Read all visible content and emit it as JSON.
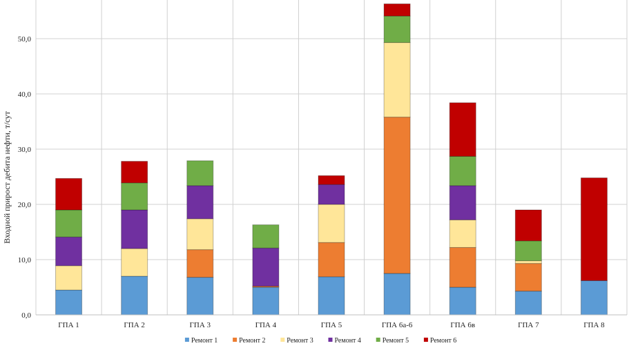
{
  "chart_data": {
    "type": "stacked-bar",
    "ylabel": "Входной прирост дебита нефти, т/сут",
    "ylim": [
      0,
      57
    ],
    "yticks": [
      0,
      10,
      20,
      30,
      40,
      50
    ],
    "ytick_labels": [
      "0,0",
      "10,0",
      "20,0",
      "30,0",
      "40,0",
      "50,0"
    ],
    "grid": "on",
    "legend_position": "bottom",
    "categories": [
      "ГПА 1",
      "ГПА 2",
      "ГПА 3",
      "ГПА 4",
      "ГПА 5",
      "ГПА 6а-6",
      "ГПА 6в",
      "ГПА 7",
      "ГПА 8"
    ],
    "series": [
      {
        "name": "Ремонт 1",
        "color": "#5b9bd5",
        "values": [
          4.5,
          7.0,
          6.8,
          5.0,
          6.9,
          7.5,
          5.0,
          4.3,
          6.2
        ]
      },
      {
        "name": "Ремонт 2",
        "color": "#ed7d31",
        "values": [
          0,
          0,
          5.0,
          0.2,
          6.2,
          28.3,
          7.2,
          5.0,
          0
        ]
      },
      {
        "name": "Ремонт 3",
        "color": "#ffe699",
        "values": [
          4.4,
          5.0,
          5.6,
          0,
          6.9,
          13.5,
          5.0,
          0.5,
          0
        ]
      },
      {
        "name": "Ремонт 4",
        "color": "#7030a0",
        "values": [
          5.2,
          7.0,
          6.0,
          6.9,
          3.6,
          0,
          6.2,
          0,
          0
        ]
      },
      {
        "name": "Ремонт 5",
        "color": "#70ad47",
        "values": [
          4.9,
          4.9,
          4.5,
          4.2,
          0,
          4.8,
          5.3,
          3.6,
          0
        ]
      },
      {
        "name": "Ремонт 6",
        "color": "#c00000",
        "values": [
          5.7,
          3.9,
          0,
          0,
          1.6,
          2.2,
          9.7,
          5.6,
          18.6
        ]
      }
    ]
  }
}
